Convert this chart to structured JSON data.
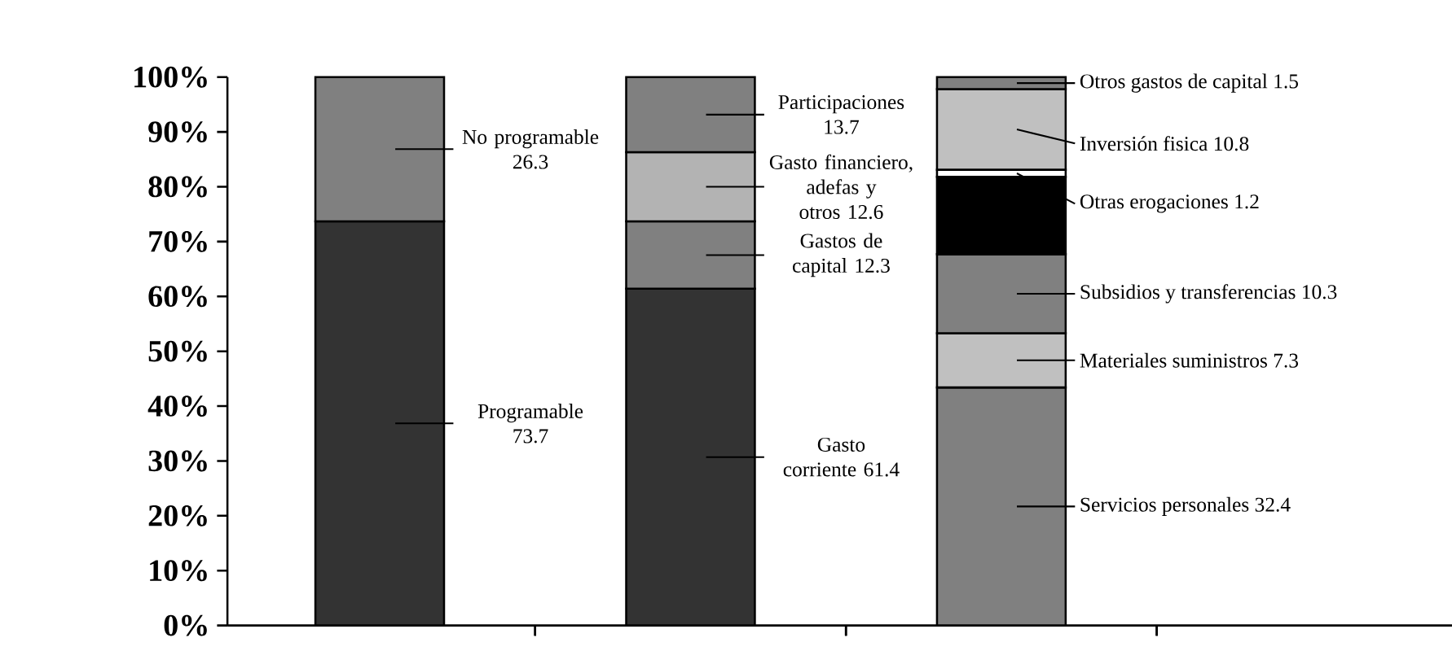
{
  "chart_data": {
    "type": "bar",
    "stacked": true,
    "legend": "right",
    "categories": [
      null,
      null,
      null
    ],
    "ylim": [
      0,
      100
    ],
    "yticks": [
      {
        "value": 0,
        "label": "0%"
      },
      {
        "value": 10,
        "label": "10%"
      },
      {
        "value": 20,
        "label": "20%"
      },
      {
        "value": 30,
        "label": "30%"
      },
      {
        "value": 40,
        "label": "40%"
      },
      {
        "value": 50,
        "label": "50%"
      },
      {
        "value": 60,
        "label": "60%"
      },
      {
        "value": 70,
        "label": "70%"
      },
      {
        "value": 80,
        "label": "80%"
      },
      {
        "value": 90,
        "label": "90%"
      },
      {
        "value": 100,
        "label": "100%"
      }
    ],
    "series": [
      {
        "name": "Programable 73.7",
        "color": "#333333",
        "values": [
          73.7,
          null,
          null
        ]
      },
      {
        "name": "No programable 26.3",
        "color": "#808080",
        "values": [
          26.3,
          null,
          null
        ]
      },
      {
        "name": "Gasto corriente 61.4",
        "color": "#333333",
        "values": [
          null,
          61.4,
          null
        ]
      },
      {
        "name": "Gastos de capital 12.3",
        "color": "#808080",
        "values": [
          null,
          12.3,
          null
        ]
      },
      {
        "name": "Gasto financiero, adefas y otros 12.6",
        "color": "#b3b3b3",
        "values": [
          null,
          12.6,
          null
        ]
      },
      {
        "name": "Participaciones 13.7",
        "color": "#808080",
        "values": [
          null,
          13.7,
          null
        ]
      },
      {
        "name": "Servicios personales 32.4",
        "color": "#808080",
        "values": [
          null,
          null,
          43.4
        ]
      },
      {
        "name": "Materiales suministros 7.3",
        "color": "#c0c0c0",
        "values": [
          null,
          null,
          9.9
        ]
      },
      {
        "name": "Subsidios y transferencias 10.3",
        "color": "#808080",
        "values": [
          null,
          null,
          14.4
        ]
      },
      {
        "color": "#000000",
        "values": [
          null,
          null,
          14.1
        ]
      },
      {
        "name": "Otras erogaciones 1.2",
        "color": "#ffffff",
        "values": [
          null,
          null,
          1.3
        ]
      },
      {
        "name": "Inversión fisica 10.8",
        "color": "#c0c0c0",
        "values": [
          null,
          null,
          14.7
        ]
      },
      {
        "name": "Otros gastos de capital 1.5",
        "color": "#808080",
        "values": [
          null,
          null,
          2.2
        ]
      }
    ]
  }
}
